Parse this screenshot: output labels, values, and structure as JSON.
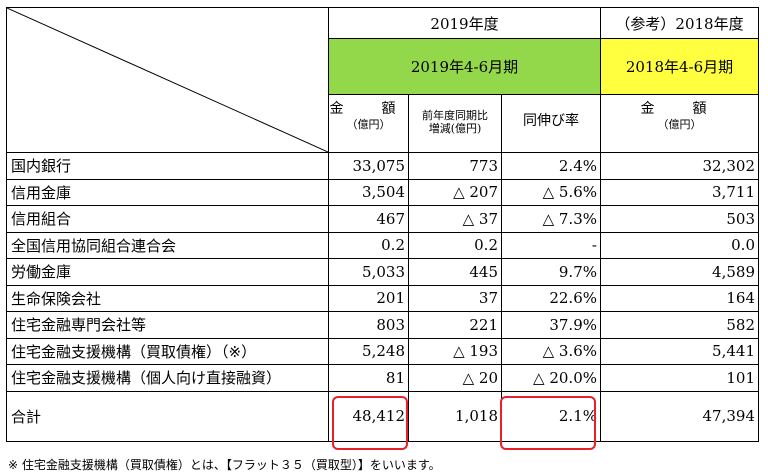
{
  "header": {
    "fy2019": "2019年度",
    "fy2018": "（参考）2018年度",
    "period2019": "2019年4-6月期",
    "period2018": "2018年4-6月期",
    "col_amount": "金　額",
    "col_amount_unit": "（億円）",
    "col_change_line1": "前年度同期比",
    "col_change_line2": "増減(億円)",
    "col_growth": "同伸び率",
    "col_amount2018": "金　額",
    "col_amount2018_unit": "（億円）"
  },
  "rows": [
    {
      "label": "国内銀行",
      "amount": "33,075",
      "change": "773",
      "growth": "2.4%",
      "amount2018": "32,302"
    },
    {
      "label": "信用金庫",
      "amount": "3,504",
      "change": "△ 207",
      "growth": "△ 5.6%",
      "amount2018": "3,711"
    },
    {
      "label": "信用組合",
      "amount": "467",
      "change": "△ 37",
      "growth": "△ 7.3%",
      "amount2018": "503"
    },
    {
      "label": "全国信用協同組合連合会",
      "amount": "0.2",
      "change": "0.2",
      "growth": "-",
      "amount2018": "0.0"
    },
    {
      "label": "労働金庫",
      "amount": "5,033",
      "change": "445",
      "growth": "9.7%",
      "amount2018": "4,589"
    },
    {
      "label": "生命保険会社",
      "amount": "201",
      "change": "37",
      "growth": "22.6%",
      "amount2018": "164"
    },
    {
      "label": "住宅金融専門会社等",
      "amount": "803",
      "change": "221",
      "growth": "37.9%",
      "amount2018": "582"
    },
    {
      "label": "住宅金融支援機構（買取債権）（※）",
      "amount": "5,248",
      "change": "△ 193",
      "growth": "△ 3.6%",
      "amount2018": "5,441"
    },
    {
      "label": "住宅金融支援機構（個人向け直接融資）",
      "amount": "81",
      "change": "△ 20",
      "growth": "△ 20.0%",
      "amount2018": "101"
    }
  ],
  "total": {
    "label": "合計",
    "amount": "48,412",
    "change": "1,018",
    "growth": "2.1%",
    "amount2018": "47,394"
  },
  "footnote": "※ 住宅金融支援機構（買取債権）とは、【フラット３５（買取型）】をいいます。",
  "colors": {
    "green": "#93d84a",
    "yellow": "#ffff3f",
    "highlight": "#e8202a"
  }
}
